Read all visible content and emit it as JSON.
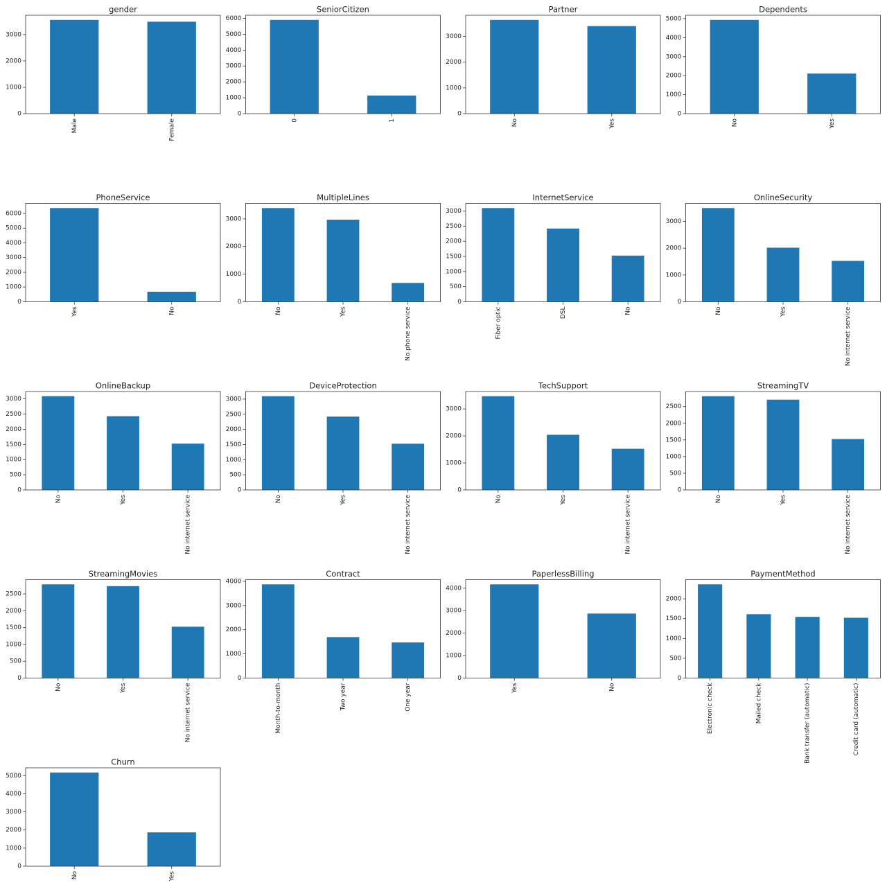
{
  "chart_data": [
    {
      "type": "bar",
      "title": "gender",
      "categories": [
        "Male",
        "Female"
      ],
      "values": [
        3555,
        3488
      ],
      "color": "#1f77b4",
      "ylim": [
        0,
        3733
      ],
      "yticks": [
        0,
        1000,
        2000,
        3000
      ]
    },
    {
      "type": "bar",
      "title": "SeniorCitizen",
      "categories": [
        "0",
        "1"
      ],
      "values": [
        5901,
        1142
      ],
      "color": "#1f77b4",
      "ylim": [
        0,
        6196
      ],
      "yticks": [
        0,
        1000,
        2000,
        3000,
        4000,
        5000,
        6000
      ]
    },
    {
      "type": "bar",
      "title": "Partner",
      "categories": [
        "No",
        "Yes"
      ],
      "values": [
        3641,
        3402
      ],
      "color": "#1f77b4",
      "ylim": [
        0,
        3823
      ],
      "yticks": [
        0,
        1000,
        2000,
        3000
      ]
    },
    {
      "type": "bar",
      "title": "Dependents",
      "categories": [
        "No",
        "Yes"
      ],
      "values": [
        4933,
        2110
      ],
      "color": "#1f77b4",
      "ylim": [
        0,
        5180
      ],
      "yticks": [
        0,
        1000,
        2000,
        3000,
        4000,
        5000
      ]
    },
    {
      "type": "bar",
      "title": "PhoneService",
      "categories": [
        "Yes",
        "No"
      ],
      "values": [
        6361,
        682
      ],
      "color": "#1f77b4",
      "ylim": [
        0,
        6679
      ],
      "yticks": [
        0,
        1000,
        2000,
        3000,
        4000,
        5000,
        6000
      ]
    },
    {
      "type": "bar",
      "title": "MultipleLines",
      "categories": [
        "No",
        "Yes",
        "No phone service"
      ],
      "values": [
        3390,
        2971,
        682
      ],
      "color": "#1f77b4",
      "ylim": [
        0,
        3560
      ],
      "yticks": [
        0,
        1000,
        2000,
        3000
      ]
    },
    {
      "type": "bar",
      "title": "InternetService",
      "categories": [
        "Fiber optic",
        "DSL",
        "No"
      ],
      "values": [
        3096,
        2421,
        1526
      ],
      "color": "#1f77b4",
      "ylim": [
        0,
        3251
      ],
      "yticks": [
        0,
        500,
        1000,
        1500,
        2000,
        2500,
        3000
      ]
    },
    {
      "type": "bar",
      "title": "OnlineSecurity",
      "categories": [
        "No",
        "Yes",
        "No internet service"
      ],
      "values": [
        3498,
        2019,
        1526
      ],
      "color": "#1f77b4",
      "ylim": [
        0,
        3673
      ],
      "yticks": [
        0,
        1000,
        2000,
        3000
      ]
    },
    {
      "type": "bar",
      "title": "OnlineBackup",
      "categories": [
        "No",
        "Yes",
        "No internet service"
      ],
      "values": [
        3088,
        2429,
        1526
      ],
      "color": "#1f77b4",
      "ylim": [
        0,
        3242
      ],
      "yticks": [
        0,
        500,
        1000,
        1500,
        2000,
        2500,
        3000
      ]
    },
    {
      "type": "bar",
      "title": "DeviceProtection",
      "categories": [
        "No",
        "Yes",
        "No internet service"
      ],
      "values": [
        3095,
        2422,
        1526
      ],
      "color": "#1f77b4",
      "ylim": [
        0,
        3250
      ],
      "yticks": [
        0,
        500,
        1000,
        1500,
        2000,
        2500,
        3000
      ]
    },
    {
      "type": "bar",
      "title": "TechSupport",
      "categories": [
        "No",
        "Yes",
        "No internet service"
      ],
      "values": [
        3473,
        2044,
        1526
      ],
      "color": "#1f77b4",
      "ylim": [
        0,
        3647
      ],
      "yticks": [
        0,
        1000,
        2000,
        3000
      ]
    },
    {
      "type": "bar",
      "title": "StreamingTV",
      "categories": [
        "No",
        "Yes",
        "No internet service"
      ],
      "values": [
        2810,
        2707,
        1526
      ],
      "color": "#1f77b4",
      "ylim": [
        0,
        2951
      ],
      "yticks": [
        0,
        500,
        1000,
        1500,
        2000,
        2500
      ]
    },
    {
      "type": "bar",
      "title": "StreamingMovies",
      "categories": [
        "No",
        "Yes",
        "No internet service"
      ],
      "values": [
        2785,
        2732,
        1526
      ],
      "color": "#1f77b4",
      "ylim": [
        0,
        2924
      ],
      "yticks": [
        0,
        500,
        1000,
        1500,
        2000,
        2500
      ]
    },
    {
      "type": "bar",
      "title": "Contract",
      "categories": [
        "Month-to-month",
        "Two year",
        "One year"
      ],
      "values": [
        3875,
        1695,
        1473
      ],
      "color": "#1f77b4",
      "ylim": [
        0,
        4069
      ],
      "yticks": [
        0,
        1000,
        2000,
        3000,
        4000
      ]
    },
    {
      "type": "bar",
      "title": "PaperlessBilling",
      "categories": [
        "Yes",
        "No"
      ],
      "values": [
        4171,
        2872
      ],
      "color": "#1f77b4",
      "ylim": [
        0,
        4380
      ],
      "yticks": [
        0,
        1000,
        2000,
        3000,
        4000
      ]
    },
    {
      "type": "bar",
      "title": "PaymentMethod",
      "categories": [
        "Electronic check",
        "Mailed check",
        "Bank transfer (automatic)",
        "Credit card (automatic)"
      ],
      "values": [
        2365,
        1612,
        1544,
        1522
      ],
      "color": "#1f77b4",
      "ylim": [
        0,
        2483
      ],
      "yticks": [
        0,
        500,
        1000,
        1500,
        2000
      ]
    },
    {
      "type": "bar",
      "title": "Churn",
      "categories": [
        "No",
        "Yes"
      ],
      "values": [
        5174,
        1869
      ],
      "color": "#1f77b4",
      "ylim": [
        0,
        5433
      ],
      "yticks": [
        0,
        1000,
        2000,
        3000,
        4000,
        5000
      ]
    }
  ]
}
